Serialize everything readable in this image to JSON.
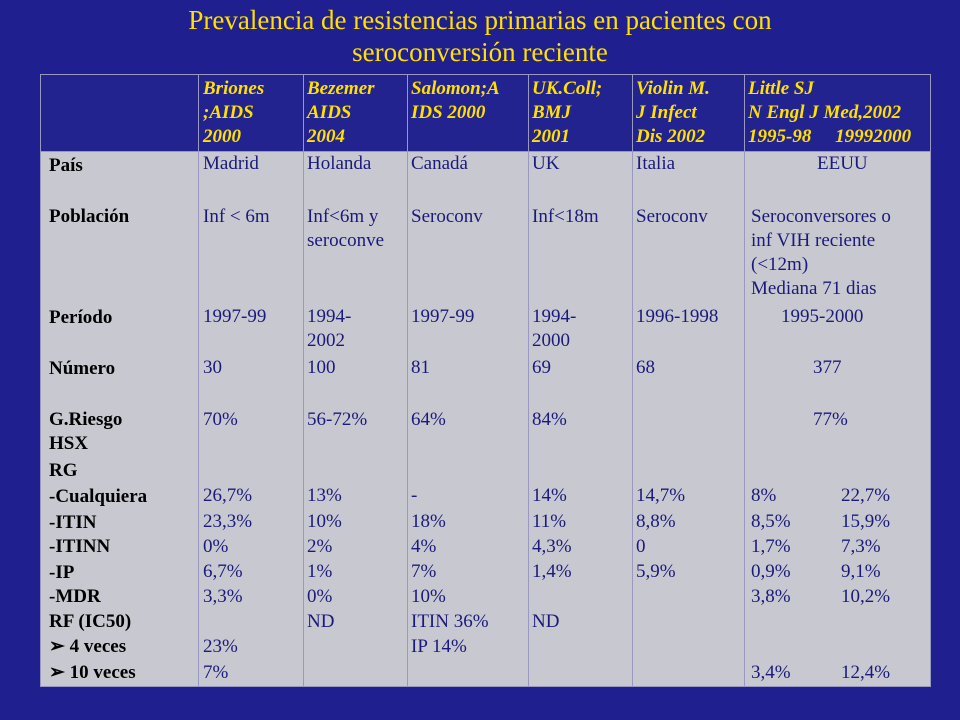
{
  "title": {
    "line1": "Prevalencia de resistencias primarias en pacientes con",
    "line2": "seroconversión reciente"
  },
  "colors": {
    "background": "#1f1f8f",
    "title": "#ffe000",
    "table_body": "#c8c8d0",
    "cell_text": "#1a1a7a"
  },
  "headers": [
    {
      "lines": [
        "Briones",
        ";AIDS",
        "2000"
      ]
    },
    {
      "lines": [
        "Bezemer",
        "AIDS",
        "2004"
      ]
    },
    {
      "lines": [
        "Salomon;A",
        "IDS 2000"
      ]
    },
    {
      "lines": [
        "UK.Coll;",
        "BMJ",
        "2001"
      ]
    },
    {
      "lines": [
        "Violin M.",
        "J Infect",
        "Dis 2002"
      ]
    },
    {
      "lines": [
        "Little SJ",
        "N Engl J Med,2002",
        "1995-98     19992000"
      ]
    }
  ],
  "rows": {
    "pais": {
      "label": "País",
      "cells": [
        "Madrid",
        "Holanda",
        "Canadá",
        "UK",
        "Italia",
        "EEUU"
      ]
    },
    "poblacion": {
      "label": "Población",
      "cells": [
        [
          "Inf < 6m"
        ],
        [
          "Inf<6m y",
          "seroconve"
        ],
        [
          "Seroconv"
        ],
        [
          "Inf<18m"
        ],
        [
          "Seroconv"
        ],
        [
          "Seroconversores o",
          "inf VIH reciente",
          "(<12m)",
          "Mediana 71 dias"
        ]
      ]
    },
    "periodo": {
      "label": "Período",
      "cells": [
        [
          "1997-99"
        ],
        [
          "1994-",
          "2002"
        ],
        [
          "1997-99"
        ],
        [
          "1994-",
          "2000"
        ],
        [
          "1996-1998"
        ],
        [
          "1995-2000"
        ]
      ]
    },
    "numero": {
      "label": "Número",
      "cells": [
        "30",
        "100",
        "81",
        "69",
        "68",
        "377"
      ]
    },
    "griesgo": {
      "label": "G.Riesgo",
      "cells": [
        "70%",
        "56-72%",
        "64%",
        "84%",
        "77%"
      ]
    },
    "hsx": {
      "label": "HSX"
    },
    "rg": {
      "label": "RG"
    },
    "cualquiera": {
      "label": "-Cualquiera",
      "cells": [
        "26,7%",
        "13%",
        "-",
        "14%",
        "14,7%",
        "8%",
        "22,7%"
      ]
    },
    "itin": {
      "label": "-ITIN",
      "cells": [
        "23,3%",
        "10%",
        "18%",
        "11%",
        "8,8%",
        "8,5%",
        "15,9%"
      ]
    },
    "itinn": {
      "label": "-ITINN",
      "cells": [
        "0%",
        "2%",
        "4%",
        "4,3%",
        "0",
        "1,7%",
        "7,3%"
      ]
    },
    "ip": {
      "label": "-IP",
      "cells": [
        "6,7%",
        "1%",
        "7%",
        "1,4%",
        "5,9%",
        "0,9%",
        "9,1%"
      ]
    },
    "mdr": {
      "label": "-MDR",
      "cells": [
        "3,3%",
        "0%",
        "10%",
        "3,8%",
        "10,2%"
      ]
    },
    "rf": {
      "label": "RF (IC50)",
      "cells": [
        "ND",
        "ITIN 36%",
        "ND"
      ]
    },
    "veces4": {
      "arrow": "➢",
      "label": "4 veces",
      "cells": [
        "23%",
        "IP 14%"
      ]
    },
    "veces10": {
      "arrow": "➢",
      "label": "10 veces",
      "cells": [
        "7%",
        "3,4%",
        "12,4%"
      ]
    }
  }
}
